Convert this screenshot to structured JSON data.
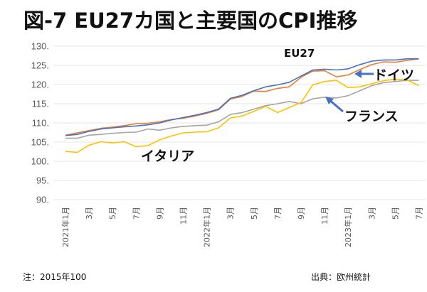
{
  "title": "図-7 EU27カ国と主要国のCPI推移",
  "footer": {
    "note": "注：2015年100",
    "source": "出典：欧州統計"
  },
  "chart_data": {
    "type": "line",
    "title": "図-7 EU27カ国と主要国のCPI推移",
    "xlabel": "",
    "ylabel": "",
    "ylim": [
      90,
      130
    ],
    "yticks": [
      90,
      95,
      100,
      105,
      110,
      115,
      120,
      125,
      130
    ],
    "ytick_labels": [
      "90.",
      "95.",
      "100.",
      "105.",
      "110.",
      "115.",
      "120.",
      "125.",
      "130."
    ],
    "grid": true,
    "x": [
      "2021-01",
      "2021-02",
      "2021-03",
      "2021-04",
      "2021-05",
      "2021-06",
      "2021-07",
      "2021-08",
      "2021-09",
      "2021-10",
      "2021-11",
      "2021-12",
      "2022-01",
      "2022-02",
      "2022-03",
      "2022-04",
      "2022-05",
      "2022-06",
      "2022-07",
      "2022-08",
      "2022-09",
      "2022-10",
      "2022-11",
      "2022-12",
      "2023-01",
      "2023-02",
      "2023-03",
      "2023-04",
      "2023-05",
      "2023-06",
      "2023-07"
    ],
    "xtick_labels": [
      {
        "index": 0,
        "label": "2021年1月"
      },
      {
        "index": 2,
        "label": "3月"
      },
      {
        "index": 4,
        "label": "5月"
      },
      {
        "index": 6,
        "label": "7月"
      },
      {
        "index": 8,
        "label": "9月"
      },
      {
        "index": 10,
        "label": "11月"
      },
      {
        "index": 12,
        "label": "2022年1月"
      },
      {
        "index": 14,
        "label": "3月"
      },
      {
        "index": 16,
        "label": "5月"
      },
      {
        "index": 18,
        "label": "7月"
      },
      {
        "index": 20,
        "label": "9月"
      },
      {
        "index": 22,
        "label": "11月"
      },
      {
        "index": 24,
        "label": "2023年1月"
      },
      {
        "index": 26,
        "label": "3月"
      },
      {
        "index": 28,
        "label": "5月"
      },
      {
        "index": 30,
        "label": "7月"
      }
    ],
    "series": [
      {
        "name": "EU27",
        "color": "#4472C4",
        "values": [
          106.7,
          107.0,
          107.8,
          108.4,
          108.7,
          109.0,
          109.2,
          109.5,
          110.0,
          110.8,
          111.4,
          112.0,
          112.7,
          113.6,
          116.4,
          117.2,
          118.4,
          119.4,
          119.9,
          120.6,
          122.2,
          123.8,
          124.0,
          123.8,
          124.1,
          125.2,
          126.1,
          126.4,
          126.4,
          126.7,
          126.7
        ]
      },
      {
        "name": "ドイツ",
        "color": "#ED7D31",
        "values": [
          106.8,
          107.4,
          108.0,
          108.6,
          108.9,
          109.3,
          109.8,
          109.9,
          110.3,
          110.9,
          111.2,
          111.8,
          112.5,
          113.4,
          116.2,
          116.9,
          118.3,
          118.2,
          119.0,
          119.4,
          121.9,
          123.5,
          123.6,
          122.0,
          122.5,
          123.9,
          125.2,
          125.9,
          125.8,
          126.3,
          126.7
        ]
      },
      {
        "name": "フランス",
        "color": "#A5A5A5",
        "values": [
          106.0,
          106.0,
          106.8,
          107.0,
          107.3,
          107.5,
          107.6,
          108.4,
          108.1,
          108.7,
          109.1,
          109.3,
          109.4,
          110.3,
          112.2,
          112.7,
          113.6,
          114.5,
          115.0,
          115.6,
          115.0,
          116.3,
          116.7,
          116.5,
          117.1,
          118.4,
          119.7,
          120.5,
          120.8,
          121.1,
          121.1
        ]
      },
      {
        "name": "イタリア",
        "color": "#FFC000",
        "values": [
          102.6,
          102.3,
          104.2,
          105.1,
          104.8,
          105.1,
          103.8,
          104.1,
          105.6,
          106.6,
          107.4,
          107.6,
          107.7,
          108.7,
          111.3,
          111.8,
          113.0,
          114.3,
          112.7,
          114.0,
          115.3,
          119.9,
          120.8,
          121.1,
          119.2,
          119.4,
          120.2,
          121.0,
          121.4,
          121.2,
          119.7
        ]
      }
    ],
    "annotations": [
      {
        "text": "EU27",
        "series": "EU27",
        "arrow": false
      },
      {
        "text": "ドイツ",
        "series": "ドイツ",
        "arrow": true,
        "arrow_color": "#4472C4"
      },
      {
        "text": "フランス",
        "series": "フランス",
        "arrow": true,
        "arrow_color": "#4472C4"
      },
      {
        "text": "イタリア",
        "series": "イタリア",
        "arrow": false
      }
    ],
    "legend": "none"
  }
}
